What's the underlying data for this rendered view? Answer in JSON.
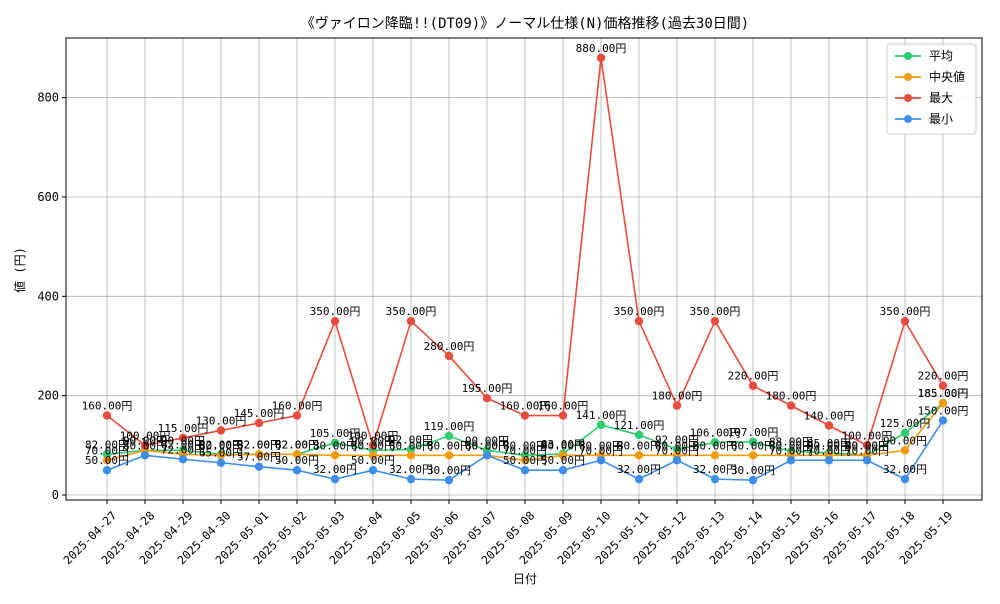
{
  "chart_data": {
    "type": "line",
    "title": "《ヴァイロン降臨!!(DT09)》ノーマル仕様(N)価格推移(過去30日間)",
    "xlabel": "日付",
    "ylabel": "値 (円)",
    "ylim": [
      -10,
      920
    ],
    "yticks": [
      0,
      200,
      400,
      600,
      800
    ],
    "grid": true,
    "legend_position": "top-right",
    "categories": [
      "2025-04-27",
      "2025-04-28",
      "2025-04-29",
      "2025-04-30",
      "2025-05-01",
      "2025-05-02",
      "2025-05-03",
      "2025-05-04",
      "2025-05-05",
      "2025-05-06",
      "2025-05-07",
      "2025-05-08",
      "2025-05-09",
      "2025-05-10",
      "2025-05-11",
      "2025-05-12",
      "2025-05-13",
      "2025-05-14",
      "2025-05-15",
      "2025-05-16",
      "2025-05-17",
      "2025-05-18",
      "2025-05-19"
    ],
    "series": [
      {
        "name": "平均",
        "color": "#2ecc71",
        "values": [
          82,
          90,
          90,
          82,
          82,
          82,
          105,
          90,
          92,
          119,
          90,
          80,
          83,
          141,
          121,
          92,
          106,
          107,
          88,
          85,
          80,
          125,
          185
        ]
      },
      {
        "name": " 中央値",
        "color": "#f39c12",
        "values": [
          70,
          90,
          82,
          80,
          82,
          82,
          80,
          80,
          80,
          80,
          80,
          70,
          80,
          80,
          80,
          80,
          80,
          80,
          80,
          80,
          80,
          90,
          185
        ]
      },
      {
        "name": "最大",
        "color": "#e74c3c",
        "values": [
          160,
          100,
          115,
          130,
          145,
          160,
          350,
          100,
          350,
          280,
          195,
          160,
          160,
          880,
          350,
          180,
          350,
          220,
          180,
          140,
          100,
          350,
          220
        ]
      },
      {
        "name": "最小",
        "color": "#3d8eea",
        "values": [
          50,
          80,
          72,
          65,
          57,
          50,
          32,
          50,
          32,
          30,
          80,
          50,
          50,
          70,
          32,
          70,
          32,
          30,
          70,
          70,
          70,
          32,
          150
        ]
      }
    ],
    "label_suffix": "円"
  }
}
